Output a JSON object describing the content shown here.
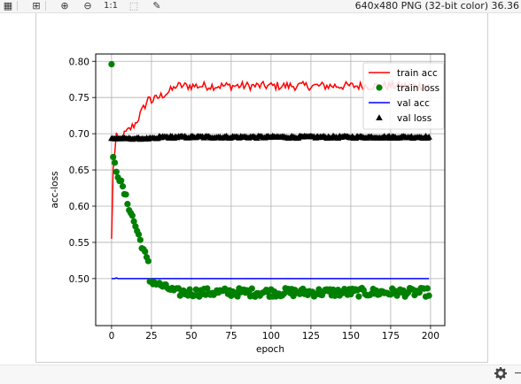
{
  "toolbar": {
    "tools": [
      {
        "name": "checkerboard-icon",
        "glyph": "▦"
      },
      {
        "name": "grid-icon",
        "glyph": "⊞"
      },
      {
        "name": "zoom-in-icon",
        "glyph": "⊕"
      },
      {
        "name": "zoom-out-icon",
        "glyph": "⊖"
      },
      {
        "name": "actual-size-button",
        "glyph": "1:1"
      },
      {
        "name": "fit-window-icon",
        "glyph": "⬚"
      },
      {
        "name": "color-picker-icon",
        "glyph": "✎"
      }
    ],
    "image_info": "640x480 PNG (32-bit color) 36.36"
  },
  "chart_data": {
    "type": "line",
    "title": "",
    "xlabel": "epoch",
    "ylabel": "acc-loss",
    "xlim": [
      -9.95,
      208.95
    ],
    "ylim": [
      0.4351,
      0.8101
    ],
    "xticks": [
      0,
      25,
      50,
      75,
      100,
      125,
      150,
      175,
      200
    ],
    "yticks": [
      0.5,
      0.55,
      0.6,
      0.65,
      0.7,
      0.75,
      0.8
    ],
    "xtick_labels": [
      "0",
      "25",
      "50",
      "75",
      "100",
      "125",
      "150",
      "175",
      "200"
    ],
    "ytick_labels": [
      "0.50",
      "0.55",
      "0.60",
      "0.65",
      "0.70",
      "0.75",
      "0.80"
    ],
    "grid": true,
    "legend_position": "top-right",
    "series": [
      {
        "name": "train acc",
        "style": "line",
        "color": "#ff0000"
      },
      {
        "name": "train loss",
        "style": "circle",
        "color": "#008000"
      },
      {
        "name": "val acc",
        "style": "line",
        "color": "#0000ff"
      },
      {
        "name": "val loss",
        "style": "triangle",
        "color": "#000000"
      }
    ]
  }
}
